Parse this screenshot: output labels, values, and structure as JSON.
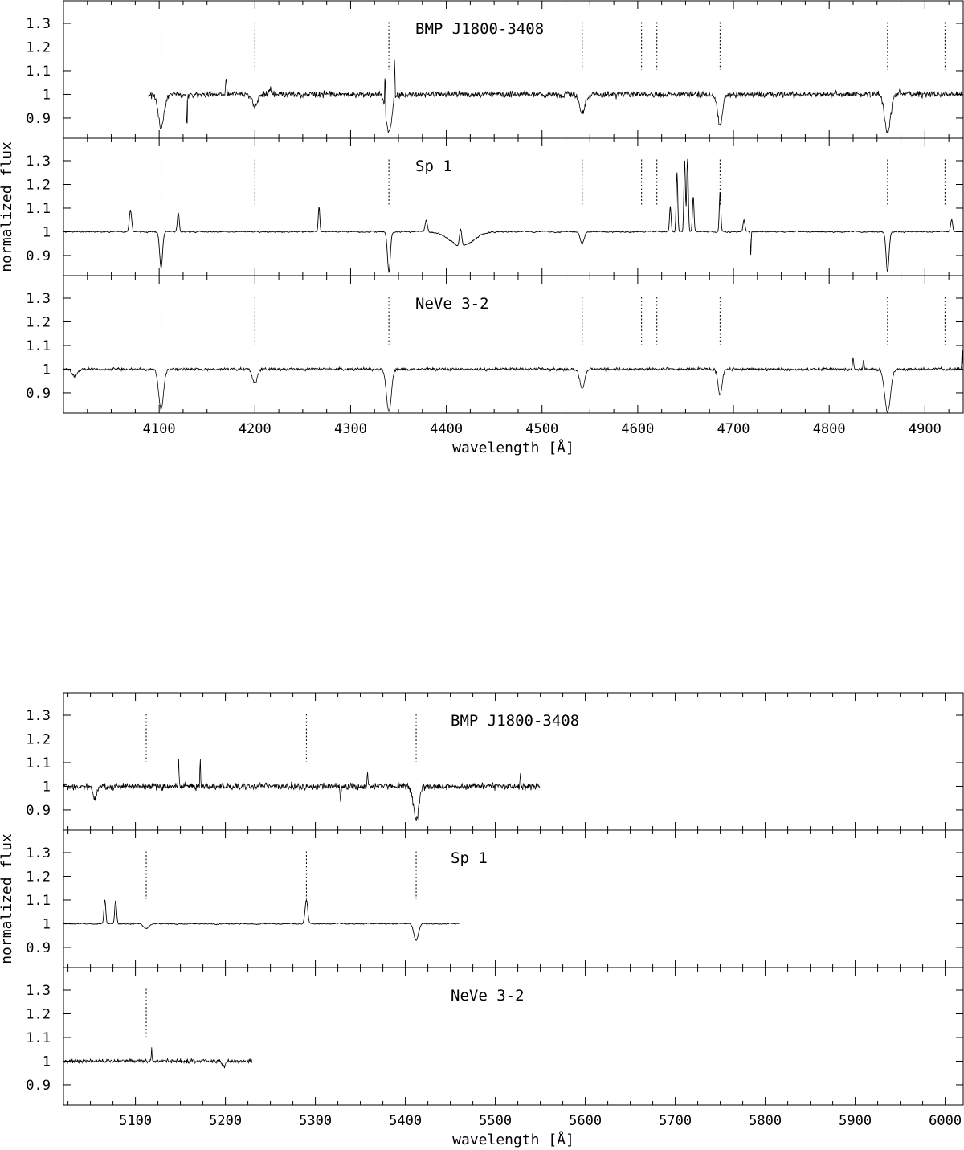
{
  "chart_data": [
    {
      "type": "line",
      "xlabel": "wavelength [Å]",
      "ylabel": "normalized flux",
      "xlim": [
        4000,
        4940
      ],
      "xticks": [
        4100,
        4200,
        4300,
        4400,
        4500,
        4600,
        4700,
        4800,
        4900
      ],
      "xtick_labels": [
        "4100",
        "4200",
        "4300",
        "4400",
        "4500",
        "4600",
        "4700",
        "4800",
        "4900"
      ],
      "ylim": [
        0.815,
        1.395
      ],
      "yticks": [
        0.9,
        1.0,
        1.1,
        1.2,
        1.3
      ],
      "ytick_labels": [
        "0.9",
        "1",
        "1.1",
        "1.2",
        "1.3"
      ],
      "line_markers": [
        4102,
        4200,
        4340,
        4542,
        4604,
        4620,
        4686,
        4861,
        4921
      ],
      "series": [
        {
          "name": "BMP J1800-3408",
          "xrange": [
            4088,
            4940
          ],
          "noise": 0.013,
          "features": [
            [
              4102,
              -0.14,
              3
            ],
            [
              4200,
              -0.05,
              3
            ],
            [
              4340,
              -0.16,
              3
            ],
            [
              4542,
              -0.08,
              3
            ],
            [
              4686,
              -0.13,
              2.5
            ],
            [
              4861,
              -0.16,
              3
            ],
            [
              4129,
              -0.14,
              0.4
            ],
            [
              4170,
              0.07,
              0.5
            ],
            [
              4336,
              0.18,
              0.3
            ],
            [
              4346,
              0.2,
              0.3
            ],
            [
              4216,
              0.03,
              1
            ]
          ]
        },
        {
          "name": "Sp 1",
          "xrange": [
            4000,
            4940
          ],
          "noise": 0.006,
          "features": [
            [
              4102,
              -0.15,
              1.5
            ],
            [
              4340,
              -0.17,
              1.5
            ],
            [
              4542,
              -0.05,
              2
            ],
            [
              4861,
              -0.17,
              1.5
            ],
            [
              4416,
              -0.06,
              12
            ],
            [
              4070,
              0.09,
              1.2
            ],
            [
              4120,
              0.08,
              1
            ],
            [
              4267,
              0.11,
              0.8
            ],
            [
              4379,
              0.05,
              1.2
            ],
            [
              4415,
              0.07,
              1.2
            ],
            [
              4634,
              0.11,
              0.8
            ],
            [
              4641,
              0.25,
              0.8
            ],
            [
              4649,
              0.3,
              0.8
            ],
            [
              4652,
              0.31,
              0.8
            ],
            [
              4658,
              0.15,
              0.8
            ],
            [
              4686,
              0.17,
              0.8
            ],
            [
              4711,
              0.05,
              1
            ],
            [
              4718,
              -0.1,
              0.4
            ],
            [
              4928,
              0.05,
              1
            ]
          ]
        },
        {
          "name": "NeVe 3-2",
          "xrange": [
            4000,
            4940
          ],
          "noise": 0.006,
          "features": [
            [
              4102,
              -0.17,
              2.5
            ],
            [
              4200,
              -0.06,
              2.5
            ],
            [
              4340,
              -0.18,
              2.5
            ],
            [
              4542,
              -0.08,
              2.5
            ],
            [
              4686,
              -0.11,
              2
            ],
            [
              4861,
              -0.18,
              3
            ],
            [
              4012,
              -0.03,
              3
            ],
            [
              4825,
              0.05,
              0.6
            ],
            [
              4836,
              0.04,
              0.6
            ],
            [
              4939,
              0.09,
              0.4
            ]
          ]
        }
      ]
    },
    {
      "type": "line",
      "xlabel": "wavelength [Å]",
      "ylabel": "normalized flux",
      "xlim": [
        5020,
        6020
      ],
      "xticks": [
        5100,
        5200,
        5300,
        5400,
        5500,
        5600,
        5700,
        5800,
        5900,
        6000
      ],
      "xtick_labels": [
        "5100",
        "5200",
        "5300",
        "5400",
        "5500",
        "5600",
        "5700",
        "5800",
        "5900",
        "6000"
      ],
      "ylim": [
        0.815,
        1.395
      ],
      "yticks": [
        0.9,
        1.0,
        1.1,
        1.2,
        1.3
      ],
      "ytick_labels": [
        "0.9",
        "1",
        "1.1",
        "1.2",
        "1.3"
      ],
      "line_markers": [
        5112,
        5290,
        5412
      ],
      "series": [
        {
          "name": "BMP J1800-3408",
          "line_markers": [
            5112,
            5290,
            5412
          ],
          "xrange": [
            5020,
            5550
          ],
          "noise": 0.014,
          "features": [
            [
              5412,
              -0.14,
              3
            ],
            [
              5055,
              -0.05,
              2
            ],
            [
              5148,
              0.12,
              0.5
            ],
            [
              5172,
              0.12,
              0.4
            ],
            [
              5328,
              -0.07,
              0.5
            ],
            [
              5358,
              0.06,
              0.5
            ],
            [
              5528,
              0.05,
              0.5
            ]
          ]
        },
        {
          "name": "Sp 1",
          "line_markers": [
            5112,
            5290,
            5412
          ],
          "xrange": [
            5020,
            5460
          ],
          "noise": 0.005,
          "features": [
            [
              5066,
              0.1,
              1
            ],
            [
              5078,
              0.1,
              1
            ],
            [
              5290,
              0.1,
              1.5
            ],
            [
              5412,
              -0.07,
              2.5
            ],
            [
              5112,
              -0.02,
              3
            ]
          ]
        },
        {
          "name": "NeVe 3-2",
          "line_markers": [
            5112
          ],
          "xrange": [
            5020,
            5230
          ],
          "noise": 0.008,
          "features": [
            [
              5118,
              0.06,
              0.4
            ],
            [
              5198,
              -0.02,
              2
            ]
          ]
        }
      ]
    }
  ]
}
